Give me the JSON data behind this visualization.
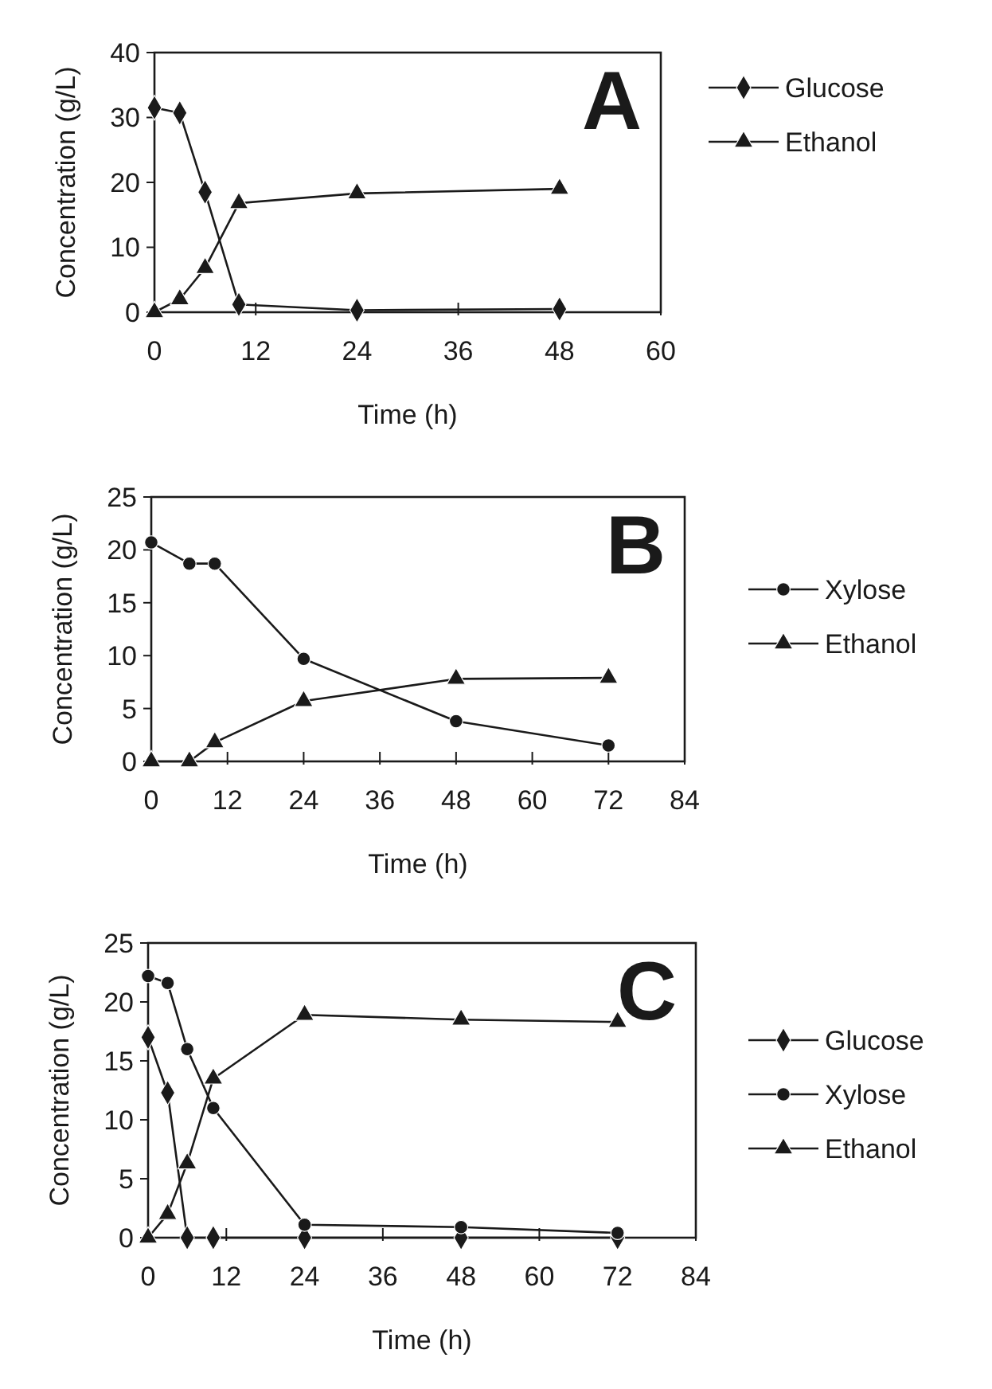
{
  "chart_data": [
    {
      "type": "line",
      "xlabel": "Time (h)",
      "ylabel": "Concentration (g/L)",
      "annotations": [
        "A"
      ],
      "xlim": [
        0,
        60
      ],
      "xticks": [
        0,
        12,
        24,
        36,
        48,
        60
      ],
      "ylim": [
        0,
        40
      ],
      "yticks": [
        0,
        10,
        20,
        30,
        40
      ],
      "grid": false,
      "legend": "right",
      "series": [
        {
          "name": "Glucose",
          "color": "#1a1a1a",
          "marker": "diamond",
          "x": [
            0,
            3,
            6,
            10,
            24,
            48
          ],
          "values": [
            31.5,
            30.7,
            18.5,
            1.2,
            0.3,
            0.5
          ]
        },
        {
          "name": "Ethanol",
          "color": "#1a1a1a",
          "marker": "triangle",
          "x": [
            0,
            3,
            6,
            10,
            24,
            48
          ],
          "values": [
            0,
            2,
            6.8,
            16.8,
            18.3,
            19
          ]
        }
      ]
    },
    {
      "type": "line",
      "xlabel": "Time (h)",
      "ylabel": "Concentration (g/L)",
      "annotations": [
        "B"
      ],
      "xlim": [
        0,
        84
      ],
      "xticks": [
        0,
        12,
        24,
        36,
        48,
        60,
        72,
        84
      ],
      "ylim": [
        0,
        25
      ],
      "yticks": [
        0,
        5,
        10,
        15,
        20,
        25
      ],
      "grid": false,
      "legend": "right",
      "series": [
        {
          "name": "Xylose",
          "color": "#1a1a1a",
          "marker": "circle",
          "x": [
            0,
            6,
            10,
            24,
            48,
            72
          ],
          "values": [
            20.7,
            18.7,
            18.7,
            9.7,
            3.8,
            1.5
          ]
        },
        {
          "name": "Ethanol",
          "color": "#1a1a1a",
          "marker": "triangle",
          "x": [
            0,
            6,
            10,
            24,
            48,
            72
          ],
          "values": [
            0,
            0,
            1.8,
            5.7,
            7.8,
            7.9
          ]
        }
      ]
    },
    {
      "type": "line",
      "xlabel": "Time (h)",
      "ylabel": "Concentration (g/L)",
      "annotations": [
        "C"
      ],
      "xlim": [
        0,
        84
      ],
      "xticks": [
        0,
        12,
        24,
        36,
        48,
        60,
        72,
        84
      ],
      "ylim": [
        0,
        25
      ],
      "yticks": [
        0,
        5,
        10,
        15,
        20,
        25
      ],
      "grid": false,
      "legend": "right",
      "series": [
        {
          "name": "Glucose",
          "color": "#1a1a1a",
          "marker": "diamond",
          "x": [
            0,
            3,
            6,
            10,
            24,
            48,
            72
          ],
          "values": [
            17,
            12.3,
            0,
            0,
            0,
            0,
            0
          ]
        },
        {
          "name": "Xylose",
          "color": "#1a1a1a",
          "marker": "circle",
          "x": [
            0,
            3,
            6,
            10,
            24,
            48,
            72
          ],
          "values": [
            22.2,
            21.6,
            16,
            11,
            1.1,
            0.9,
            0.4
          ]
        },
        {
          "name": "Ethanol",
          "color": "#1a1a1a",
          "marker": "triangle",
          "x": [
            0,
            3,
            6,
            10,
            24,
            48,
            72
          ],
          "values": [
            0,
            2,
            6.3,
            13.5,
            18.9,
            18.5,
            18.3
          ]
        }
      ]
    }
  ]
}
